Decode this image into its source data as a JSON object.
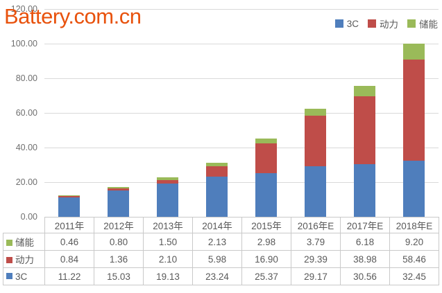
{
  "watermark": {
    "text": "Battery.com.cn",
    "color": "#E8520D"
  },
  "colors": {
    "blue": "#4F7EBC",
    "red": "#BF4D49",
    "green": "#9ABA59",
    "grid": "#D9D9D9",
    "table_border": "#C9C9C9",
    "text": "#595959",
    "tick_text": "#6F6F6F"
  },
  "legend": {
    "position": "top-right",
    "order": [
      "3C",
      "动力",
      "储能"
    ]
  },
  "chart_data": {
    "type": "bar",
    "stacked": true,
    "title": "",
    "xlabel": "",
    "ylabel": "",
    "categories": [
      "2011年",
      "2012年",
      "2013年",
      "2014年",
      "2015年",
      "2016年E",
      "2017年E",
      "2018年E"
    ],
    "series": [
      {
        "name": "3C",
        "color": "#4F7EBC",
        "values": [
          11.22,
          15.03,
          19.13,
          23.24,
          25.37,
          29.17,
          30.56,
          32.45
        ]
      },
      {
        "name": "动力",
        "color": "#BF4D49",
        "values": [
          0.84,
          1.36,
          2.1,
          5.98,
          16.9,
          29.39,
          38.98,
          58.46
        ]
      },
      {
        "name": "储能",
        "color": "#9ABA59",
        "values": [
          0.46,
          0.8,
          1.5,
          2.13,
          2.98,
          3.79,
          6.18,
          9.2
        ]
      }
    ],
    "ylim": [
      0,
      120
    ],
    "ytick_labels": [
      "0.00",
      "20.00",
      "40.00",
      "60.00",
      "80.00",
      "100.00",
      "120.00"
    ],
    "grid": true,
    "legend_position": "top-right",
    "data_table": {
      "shown": true,
      "row_order": [
        "储能",
        "动力",
        "3C"
      ],
      "value_decimals": 2
    }
  }
}
